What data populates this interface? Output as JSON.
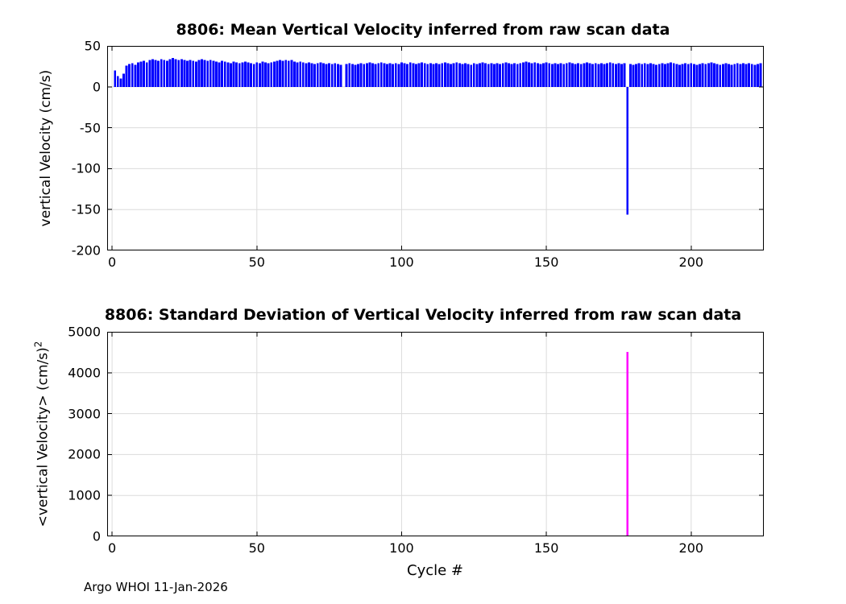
{
  "figure": {
    "footer": "Argo WHOI 11-Jan-2026"
  },
  "chart_data": [
    {
      "type": "bar",
      "title": "8806: Mean Vertical Velocity inferred from raw scan data",
      "xlabel": "",
      "ylabel": "vertical Velocity (cm/s)",
      "bar_color": "#0000FF",
      "grid": true,
      "legend": "none",
      "xlim": [
        -1.7,
        225.1
      ],
      "ylim": [
        -200,
        50
      ],
      "xticks": [
        0,
        50,
        100,
        150,
        200
      ],
      "yticks": [
        -200,
        -150,
        -100,
        -50,
        0,
        50
      ],
      "x_start": 1,
      "values": [
        20,
        13,
        10,
        16,
        26,
        28,
        29,
        27,
        30,
        31,
        32,
        30,
        33,
        34,
        33,
        32,
        34,
        33,
        32,
        34,
        35,
        34,
        33,
        34,
        33,
        32,
        33,
        32,
        31,
        33,
        34,
        33,
        32,
        33,
        32,
        31,
        30,
        32,
        31,
        30,
        29,
        31,
        30,
        29,
        30,
        31,
        30,
        29,
        28,
        30,
        29,
        31,
        30,
        29,
        30,
        31,
        32,
        33,
        32,
        33,
        32,
        33,
        31,
        30,
        31,
        30,
        29,
        30,
        29,
        28,
        29,
        30,
        29,
        28,
        29,
        28,
        29,
        28,
        27,
        0,
        28,
        29,
        28,
        27,
        28,
        29,
        28,
        29,
        30,
        29,
        28,
        29,
        30,
        29,
        28,
        29,
        28,
        29,
        28,
        30,
        29,
        28,
        30,
        29,
        28,
        29,
        30,
        29,
        28,
        29,
        28,
        29,
        28,
        29,
        30,
        29,
        28,
        29,
        30,
        29,
        28,
        29,
        28,
        27,
        29,
        28,
        29,
        30,
        29,
        28,
        29,
        28,
        29,
        28,
        29,
        30,
        29,
        28,
        29,
        28,
        29,
        30,
        31,
        30,
        29,
        30,
        29,
        28,
        29,
        30,
        29,
        28,
        29,
        28,
        29,
        28,
        29,
        30,
        29,
        28,
        29,
        28,
        29,
        30,
        29,
        28,
        29,
        28,
        29,
        28,
        29,
        30,
        29,
        28,
        29,
        28,
        29,
        -156,
        28,
        27,
        28,
        29,
        28,
        29,
        28,
        29,
        28,
        27,
        28,
        29,
        28,
        29,
        30,
        29,
        28,
        27,
        28,
        29,
        28,
        29,
        28,
        27,
        28,
        29,
        28,
        29,
        30,
        29,
        28,
        27,
        28,
        29,
        28,
        27,
        28,
        29,
        28,
        29,
        28,
        29,
        28,
        27,
        28,
        29
      ]
    },
    {
      "type": "bar",
      "title": "8806: Standard Deviation of Vertical Velocity inferred from raw scan data",
      "xlabel": "Cycle #",
      "ylabel": "<vertical Velocity> (cm/s)",
      "ylabel_superscript": "2",
      "bar_color": "#FF00FF",
      "grid": true,
      "legend": "none",
      "xlim": [
        -1.7,
        225.1
      ],
      "ylim": [
        0,
        5000
      ],
      "xticks": [
        0,
        50,
        100,
        150,
        200
      ],
      "yticks": [
        0,
        1000,
        2000,
        3000,
        4000,
        5000
      ],
      "x": [
        178
      ],
      "values": [
        4510
      ]
    }
  ]
}
